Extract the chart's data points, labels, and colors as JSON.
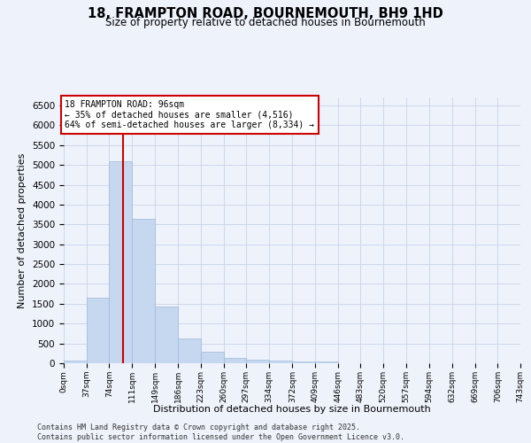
{
  "title_line1": "18, FRAMPTON ROAD, BOURNEMOUTH, BH9 1HD",
  "title_line2": "Size of property relative to detached houses in Bournemouth",
  "xlabel": "Distribution of detached houses by size in Bournemouth",
  "ylabel": "Number of detached properties",
  "bar_color": "#c5d8f0",
  "bar_edge_color": "#a0b8d8",
  "grid_color": "#c8d4e8",
  "background_color": "#eef2fb",
  "bins": [
    0,
    37,
    74,
    111,
    149,
    186,
    223,
    260,
    297,
    334,
    372,
    409,
    446,
    483,
    520,
    557,
    594,
    632,
    669,
    706,
    743
  ],
  "bar_labels": [
    "0sqm",
    "37sqm",
    "74sqm",
    "111sqm",
    "149sqm",
    "186sqm",
    "223sqm",
    "260sqm",
    "297sqm",
    "334sqm",
    "372sqm",
    "409sqm",
    "446sqm",
    "483sqm",
    "520sqm",
    "557sqm",
    "594sqm",
    "632sqm",
    "669sqm",
    "706sqm",
    "743sqm"
  ],
  "values": [
    75,
    1650,
    5100,
    3650,
    1430,
    620,
    300,
    140,
    95,
    75,
    55,
    40,
    0,
    0,
    0,
    0,
    0,
    0,
    0,
    0
  ],
  "ylim": [
    0,
    6700
  ],
  "yticks": [
    0,
    500,
    1000,
    1500,
    2000,
    2500,
    3000,
    3500,
    4000,
    4500,
    5000,
    5500,
    6000,
    6500
  ],
  "vline_x": 96,
  "annotation_title": "18 FRAMPTON ROAD: 96sqm",
  "annotation_line1": "← 35% of detached houses are smaller (4,516)",
  "annotation_line2": "64% of semi-detached houses are larger (8,334) →",
  "annotation_box_color": "#ffffff",
  "annotation_border_color": "#cc0000",
  "vline_color": "#cc0000",
  "footer_line1": "Contains HM Land Registry data © Crown copyright and database right 2025.",
  "footer_line2": "Contains public sector information licensed under the Open Government Licence v3.0."
}
